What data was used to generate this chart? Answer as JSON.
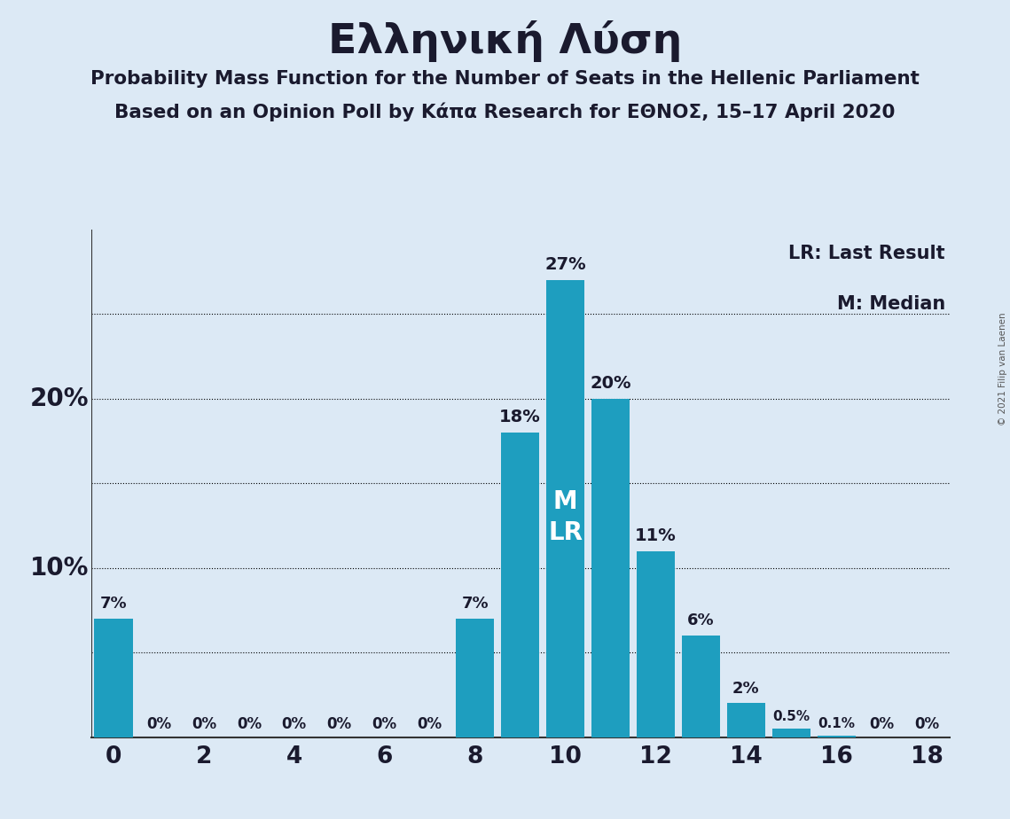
{
  "title": "Ελληνική Λύση",
  "subtitle1": "Probability Mass Function for the Number of Seats in the Hellenic Parliament",
  "subtitle2": "Based on an Opinion Poll by Κάπα Research for ΕΘΝΟΣ, 15–17 April 2020",
  "copyright": "© 2021 Filip van Laenen",
  "seats": [
    0,
    1,
    2,
    3,
    4,
    5,
    6,
    7,
    8,
    9,
    10,
    11,
    12,
    13,
    14,
    15,
    16,
    17,
    18
  ],
  "probabilities": [
    7,
    0,
    0,
    0,
    0,
    0,
    0,
    0,
    7,
    18,
    27,
    20,
    11,
    6,
    2,
    0.5,
    0.1,
    0,
    0
  ],
  "bar_color": "#1E9EBF",
  "background_color": "#dce9f5",
  "median_seat": 10,
  "last_result_seat": 10,
  "grid_levels": [
    5,
    10,
    15,
    20,
    25
  ],
  "xlim": [
    -0.5,
    18.5
  ],
  "ylim": [
    0,
    30
  ],
  "legend_lr": "LR: Last Result",
  "legend_m": "M: Median",
  "ml_label": "M\nLR",
  "ml_y": 13,
  "y_label_vals": [
    10,
    20
  ],
  "y_label_strs": [
    "10%",
    "20%"
  ]
}
